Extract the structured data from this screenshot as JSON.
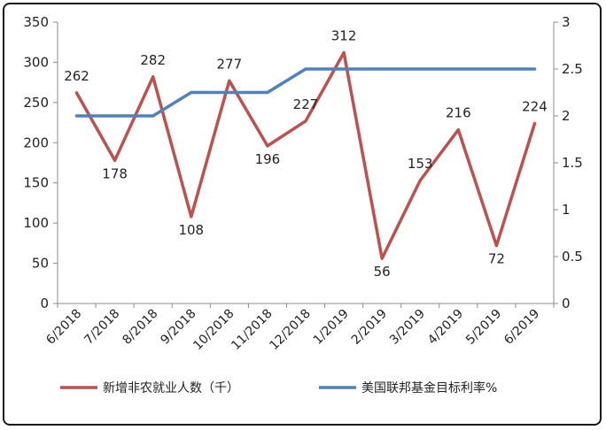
{
  "chart_data": {
    "type": "line",
    "categories": [
      "6/2018",
      "7/2018",
      "8/2018",
      "9/2018",
      "10/2018",
      "11/2018",
      "12/2018",
      "1/2019",
      "2/2019",
      "3/2019",
      "4/2019",
      "5/2019",
      "6/2019"
    ],
    "series": [
      {
        "name": "新增非农就业人数（千）",
        "axis": "left",
        "color": "#C0504D",
        "values": [
          262,
          178,
          282,
          108,
          277,
          196,
          227,
          312,
          56,
          153,
          216,
          72,
          224
        ],
        "data_labels": true
      },
      {
        "name": "美国联邦基金目标利率%",
        "axis": "right",
        "color": "#4F81BD",
        "values": [
          2,
          2,
          2,
          2.25,
          2.25,
          2.25,
          2.5,
          2.5,
          2.5,
          2.5,
          2.5,
          2.5,
          2.5
        ],
        "data_labels": false
      }
    ],
    "y_left": {
      "min": 0,
      "max": 350,
      "step": 50,
      "ticks": [
        "0",
        "50",
        "100",
        "150",
        "200",
        "250",
        "300",
        "350"
      ]
    },
    "y_right": {
      "min": 0,
      "max": 3,
      "step": 0.5,
      "ticks": [
        "0",
        "0.5",
        "1",
        "1.5",
        "2",
        "2.5",
        "3"
      ]
    },
    "grid": false,
    "legend": "bottom"
  }
}
